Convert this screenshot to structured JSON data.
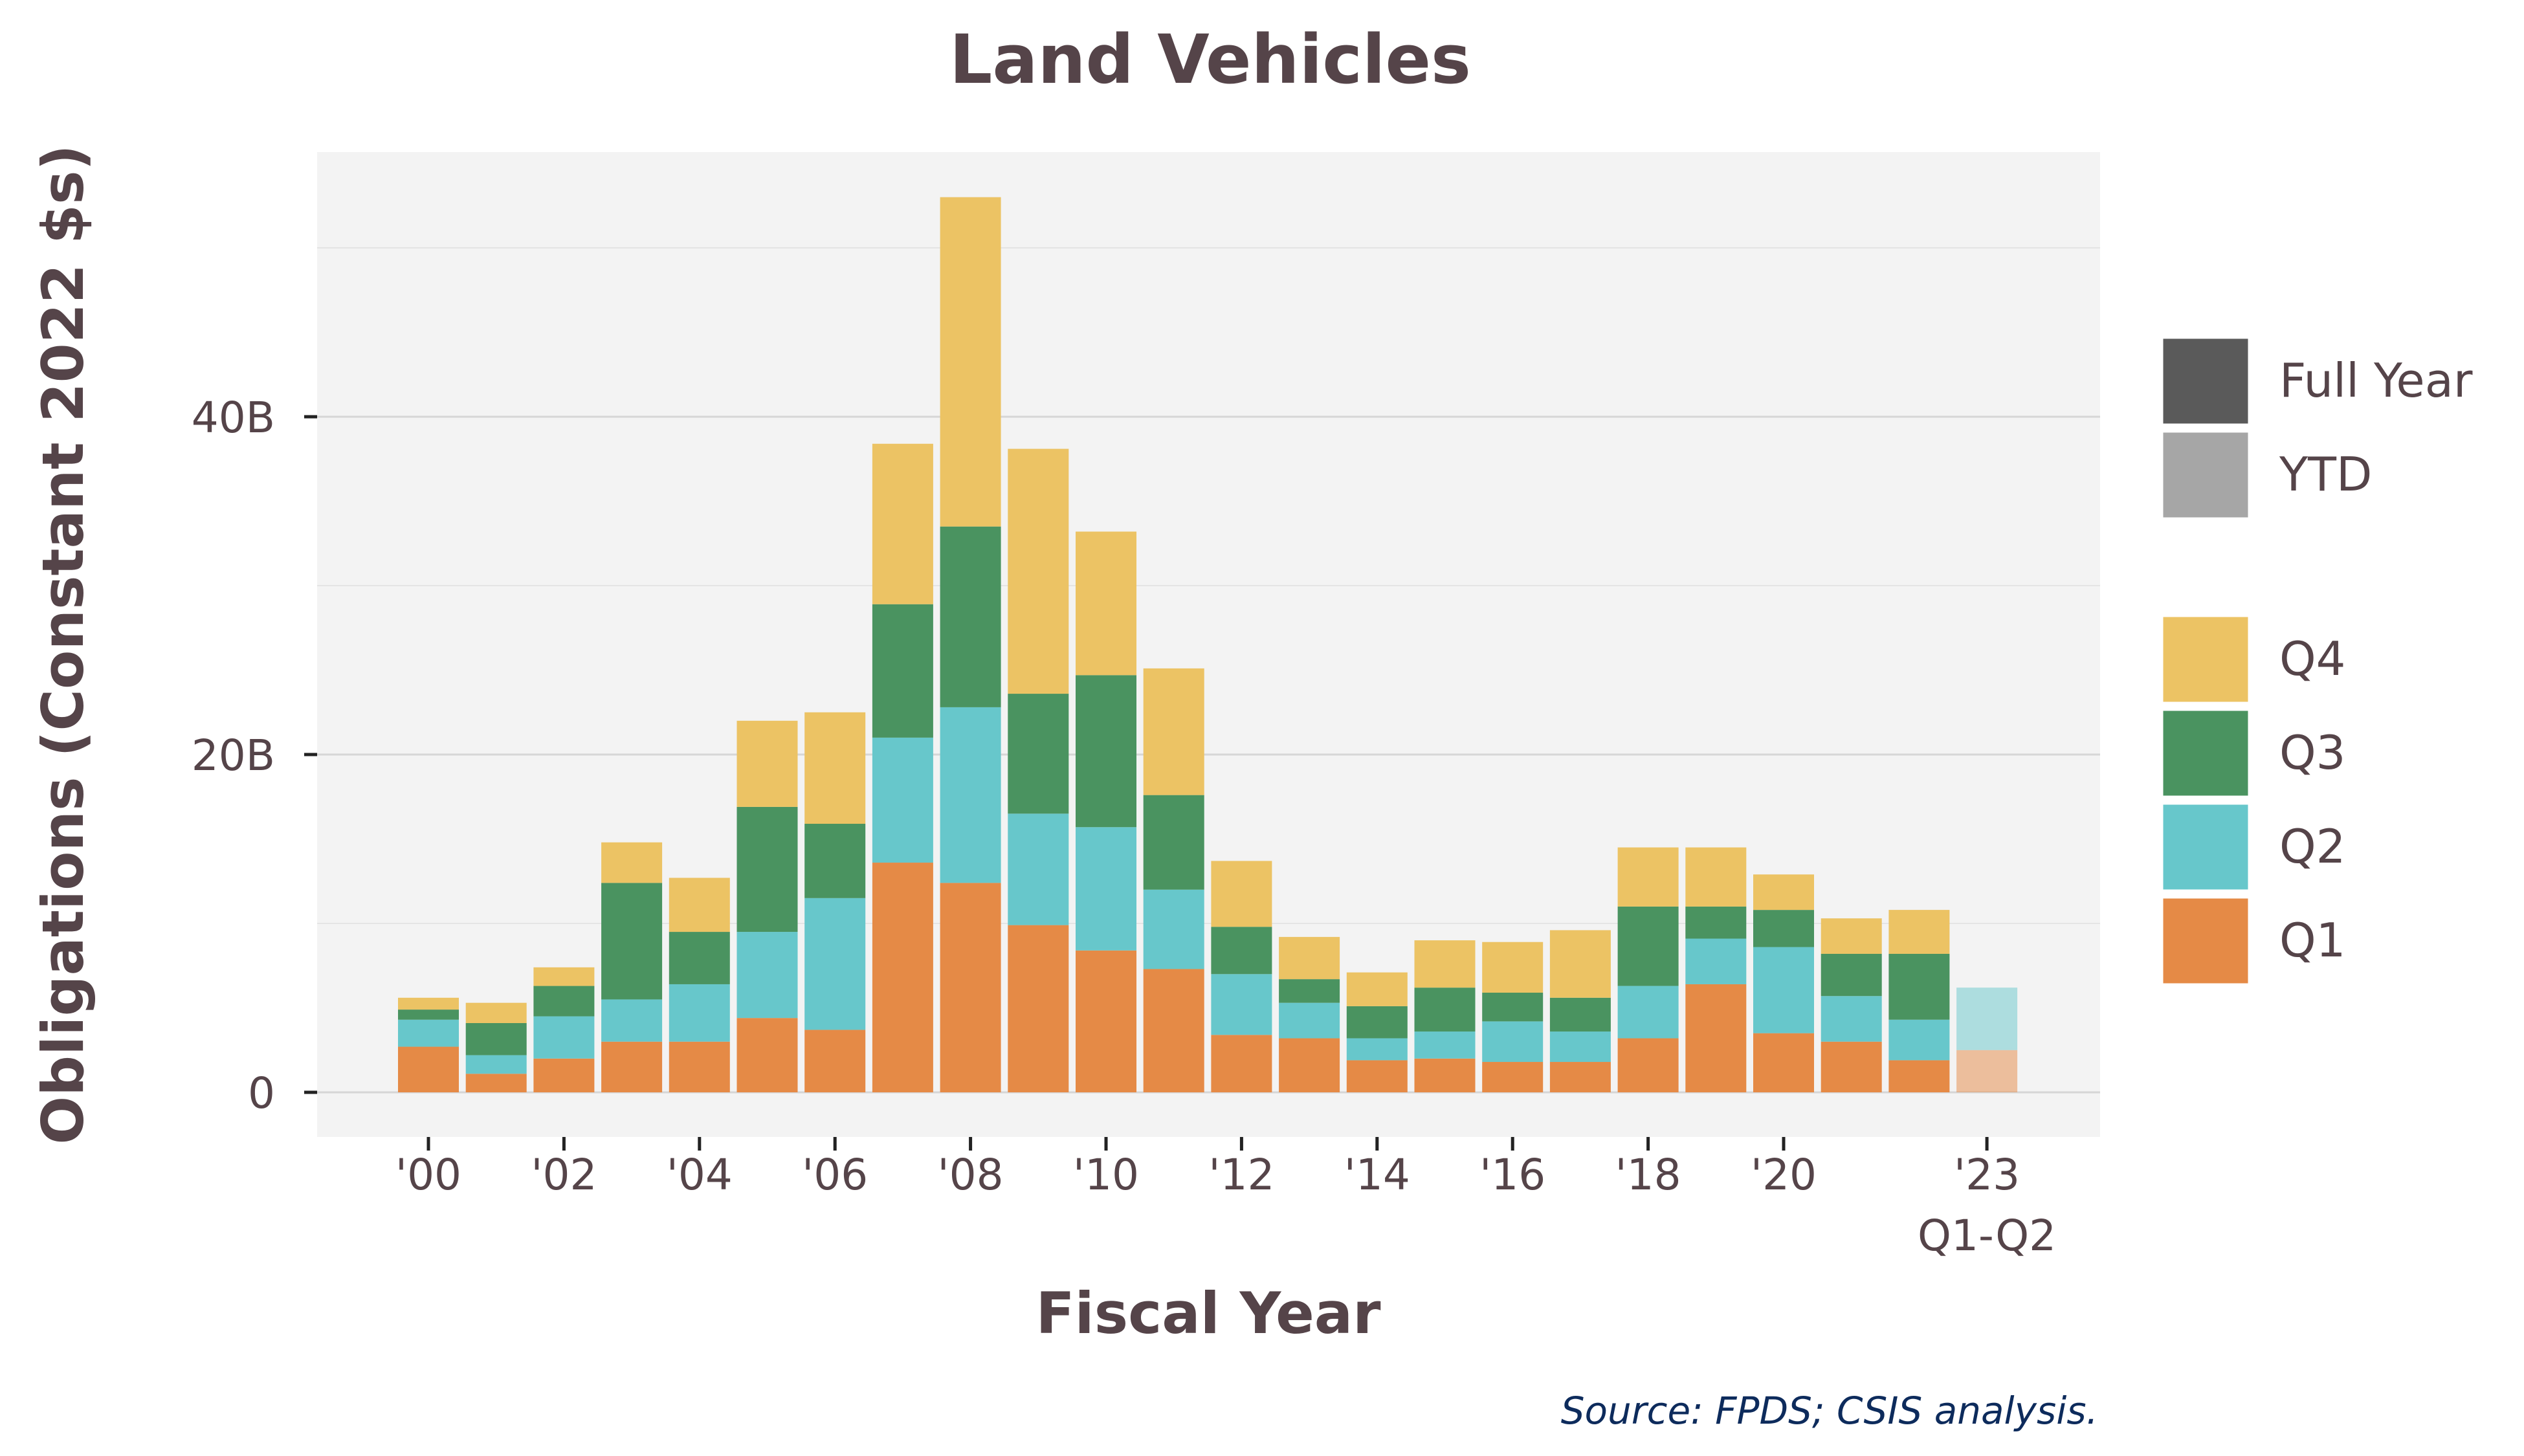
{
  "chart_data": {
    "type": "bar",
    "stacked": true,
    "title": "Land Vehicles",
    "xlabel": "Fiscal Year",
    "ylabel": "Obligations (Constant 2022 $s)",
    "ylim": [
      0,
      55
    ],
    "y_ticks": [
      {
        "value": 0,
        "label": "0"
      },
      {
        "value": 20,
        "label": "20B"
      },
      {
        "value": 40,
        "label": "40B"
      }
    ],
    "x_ticks": [
      {
        "year": 2000,
        "label": "'00"
      },
      {
        "year": 2002,
        "label": "'02"
      },
      {
        "year": 2004,
        "label": "'04"
      },
      {
        "year": 2006,
        "label": "'06"
      },
      {
        "year": 2008,
        "label": "'08"
      },
      {
        "year": 2010,
        "label": "'10"
      },
      {
        "year": 2012,
        "label": "'12"
      },
      {
        "year": 2014,
        "label": "'14"
      },
      {
        "year": 2016,
        "label": "'16"
      },
      {
        "year": 2018,
        "label": "'18"
      },
      {
        "year": 2020,
        "label": "'20"
      },
      {
        "year": 2023,
        "label": "'23",
        "sublabel": "Q1-Q2"
      }
    ],
    "grid": true,
    "legend_position": "right",
    "legend_period": [
      {
        "name": "Full Year",
        "color": "#5a5a5a"
      },
      {
        "name": "YTD",
        "color": "#a6a6a6"
      }
    ],
    "series": [
      {
        "name": "Q1",
        "color": "#e58a46",
        "values": [
          2.7,
          1.1,
          2.0,
          3.0,
          3.0,
          4.4,
          3.7,
          13.6,
          12.4,
          9.9,
          8.4,
          7.3,
          3.4,
          3.2,
          1.9,
          2.0,
          1.8,
          1.8,
          3.2,
          6.4,
          3.5,
          3.0,
          1.9,
          2.5
        ]
      },
      {
        "name": "Q2",
        "color": "#67c7cb",
        "values": [
          1.6,
          1.1,
          2.5,
          2.5,
          3.4,
          5.1,
          7.8,
          7.4,
          10.4,
          6.6,
          7.3,
          4.7,
          3.6,
          2.1,
          1.3,
          1.6,
          2.4,
          1.8,
          3.1,
          2.7,
          5.1,
          2.7,
          2.4,
          3.7
        ]
      },
      {
        "name": "Q3",
        "color": "#4a9360",
        "values": [
          0.6,
          1.9,
          1.8,
          6.9,
          3.1,
          7.4,
          4.4,
          7.9,
          10.7,
          7.1,
          9.0,
          5.6,
          2.8,
          1.4,
          1.9,
          2.6,
          1.7,
          2.0,
          4.7,
          1.9,
          2.2,
          2.5,
          3.9,
          0.0
        ]
      },
      {
        "name": "Q4",
        "color": "#ecc364",
        "values": [
          0.7,
          1.2,
          1.1,
          2.4,
          3.2,
          5.1,
          6.6,
          9.5,
          19.5,
          14.5,
          8.5,
          7.5,
          3.9,
          2.5,
          2.0,
          2.8,
          3.0,
          4.0,
          3.5,
          3.5,
          2.1,
          2.1,
          2.6,
          0.0
        ]
      }
    ],
    "years": [
      2000,
      2001,
      2002,
      2003,
      2004,
      2005,
      2006,
      2007,
      2008,
      2009,
      2010,
      2011,
      2012,
      2013,
      2014,
      2015,
      2016,
      2017,
      2018,
      2019,
      2020,
      2021,
      2022,
      2023
    ],
    "ytd_year": 2023,
    "source": "Source: FPDS; CSIS analysis."
  }
}
